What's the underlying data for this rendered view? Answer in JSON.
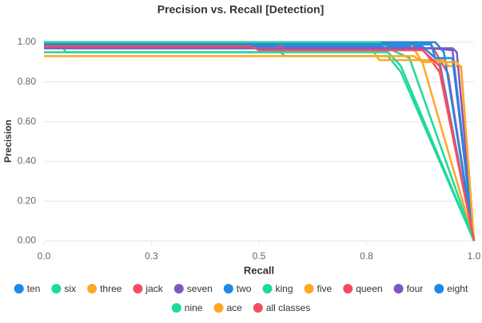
{
  "chart_data": {
    "type": "line",
    "title": "Precision vs. Recall [Detection]",
    "x_label": "Recall",
    "y_label": "Precision",
    "xlim": [
      0,
      1
    ],
    "ylim": [
      0,
      1
    ],
    "xticks": [
      {
        "value": 0,
        "label": "0.0"
      },
      {
        "value": 0.25,
        "label": "0.3"
      },
      {
        "value": 0.5,
        "label": "0.5"
      },
      {
        "value": 0.75,
        "label": "0.8"
      },
      {
        "value": 1,
        "label": "1.0"
      }
    ],
    "yticks": [
      {
        "value": 0,
        "label": "0.00"
      },
      {
        "value": 0.2,
        "label": "0.20"
      },
      {
        "value": 0.4,
        "label": "0.40"
      },
      {
        "value": 0.6,
        "label": "0.60"
      },
      {
        "value": 0.8,
        "label": "0.80"
      },
      {
        "value": 1,
        "label": "1.00"
      }
    ],
    "grid": true,
    "series": [
      {
        "name": "ten",
        "color": "#1e88e5",
        "x": [
          0,
          0.02,
          0.88,
          0.9,
          0.92,
          1
        ],
        "values": [
          1,
          0.98,
          0.98,
          0.94,
          0.9,
          0
        ]
      },
      {
        "name": "six",
        "color": "#1ed99b",
        "x": [
          0,
          0.04,
          0.05,
          0.55,
          0.56,
          0.8,
          0.83,
          1
        ],
        "values": [
          1,
          1,
          0.95,
          0.95,
          0.93,
          0.93,
          0.85,
          0
        ]
      },
      {
        "name": "three",
        "color": "#ffa726",
        "x": [
          0,
          0.85,
          0.88,
          1
        ],
        "values": [
          1,
          1,
          0.9,
          0
        ]
      },
      {
        "name": "jack",
        "color": "#f44d63",
        "x": [
          0,
          0.02,
          0.9,
          0.94,
          1
        ],
        "values": [
          0.99,
          0.99,
          0.99,
          0.84,
          0
        ]
      },
      {
        "name": "seven",
        "color": "#7e57c2",
        "x": [
          0,
          0.9,
          0.95,
          1
        ],
        "values": [
          0.97,
          0.97,
          0.96,
          0
        ]
      },
      {
        "name": "two",
        "color": "#1e88e5",
        "x": [
          0,
          0.82,
          0.84,
          0.91,
          0.93,
          1
        ],
        "values": [
          1,
          1,
          1,
          1,
          0.95,
          0
        ]
      },
      {
        "name": "king",
        "color": "#1ed99b",
        "x": [
          0,
          0.78,
          0.8,
          0.85,
          1
        ],
        "values": [
          1,
          1,
          0.97,
          0.92,
          0
        ]
      },
      {
        "name": "five",
        "color": "#ffa726",
        "x": [
          0,
          0.76,
          0.78,
          0.93,
          0.94,
          0.97,
          1
        ],
        "values": [
          0.97,
          0.97,
          0.91,
          0.91,
          0.88,
          0.88,
          0
        ]
      },
      {
        "name": "queen",
        "color": "#f44d63",
        "x": [
          0,
          0.54,
          0.56,
          0.88,
          0.92,
          1
        ],
        "values": [
          0.99,
          0.99,
          0.97,
          0.97,
          0.85,
          0
        ]
      },
      {
        "name": "four",
        "color": "#7e57c2",
        "x": [
          0,
          0.95,
          0.96,
          1
        ],
        "values": [
          0.97,
          0.97,
          0.95,
          0
        ]
      },
      {
        "name": "eight",
        "color": "#1e88e5",
        "x": [
          0,
          0.9,
          0.91,
          0.95,
          1
        ],
        "values": [
          0.99,
          0.99,
          0.92,
          0.92,
          0
        ]
      },
      {
        "name": "nine",
        "color": "#1ed99b",
        "x": [
          0,
          0.8,
          0.83,
          1
        ],
        "values": [
          0.95,
          0.95,
          0.88,
          0
        ]
      },
      {
        "name": "ace",
        "color": "#ffa726",
        "x": [
          0,
          0.86,
          0.88,
          0.96,
          0.97,
          1
        ],
        "values": [
          0.93,
          0.93,
          0.9,
          0.9,
          0.87,
          0
        ]
      },
      {
        "name": "all classes",
        "color": "#f44d63",
        "x": [
          0,
          0.48,
          0.5,
          0.88,
          0.92,
          1
        ],
        "values": [
          0.98,
          0.98,
          0.96,
          0.96,
          0.88,
          0
        ]
      }
    ]
  }
}
